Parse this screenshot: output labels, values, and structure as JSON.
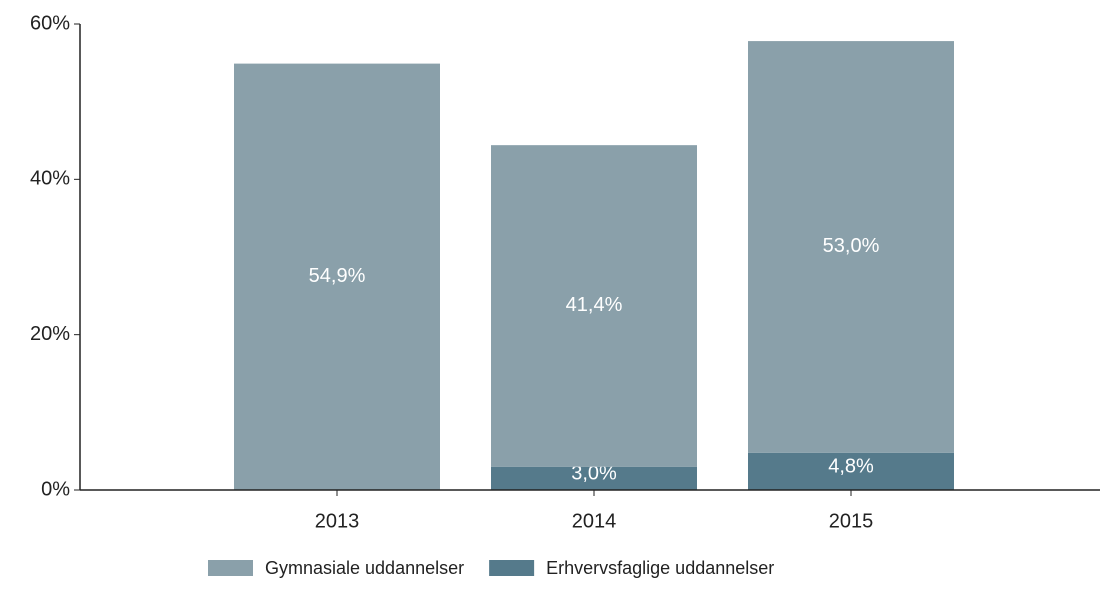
{
  "chart_data": {
    "type": "stacked_bar",
    "categories": [
      "2013",
      "2014",
      "2015"
    ],
    "series": [
      {
        "name": "Erhvervsfaglige uddannelser",
        "color": "#557a8b",
        "values": [
          null,
          3.0,
          4.8
        ],
        "value_labels": [
          null,
          "3,0%",
          "4,8%"
        ]
      },
      {
        "name": "Gymnasiale uddannelser",
        "color": "#8aa0aa",
        "values": [
          54.9,
          41.4,
          53.0
        ],
        "value_labels": [
          "54,9%",
          "41,4%",
          "53,0%"
        ]
      }
    ],
    "ylim": [
      0,
      60
    ],
    "yticks": [
      {
        "value": 0,
        "label": "0%"
      },
      {
        "value": 20,
        "label": "20%"
      },
      {
        "value": 40,
        "label": "40%"
      },
      {
        "value": 60,
        "label": "60%"
      }
    ],
    "legend": "bottom"
  }
}
